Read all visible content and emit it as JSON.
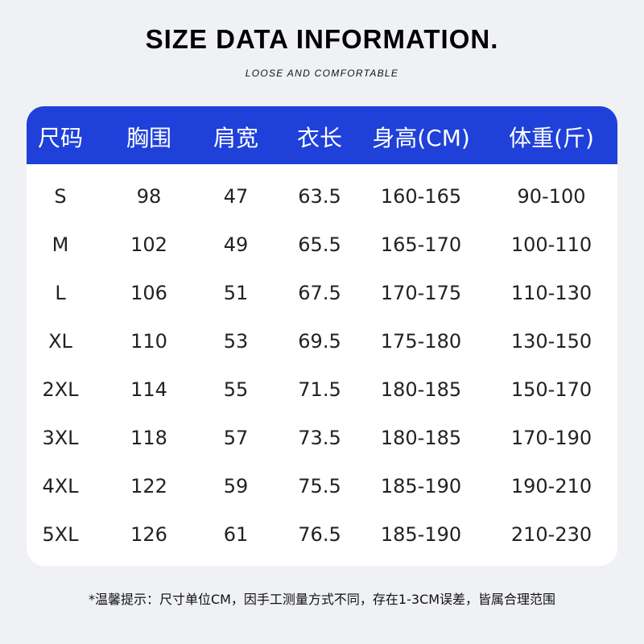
{
  "title": "SIZE DATA INFORMATION.",
  "subtitle": "LOOSE AND COMFORTABLE",
  "colors": {
    "header": "#1f40d9",
    "background": "#f0f1f5"
  },
  "table": {
    "headers": [
      "尺码",
      "胸围",
      "肩宽",
      "衣长",
      "身高(CM)",
      "体重(斤)"
    ],
    "rows": [
      [
        "S",
        "98",
        "47",
        "63.5",
        "160-165",
        "90-100"
      ],
      [
        "M",
        "102",
        "49",
        "65.5",
        "165-170",
        "100-110"
      ],
      [
        "L",
        "106",
        "51",
        "67.5",
        "170-175",
        "110-130"
      ],
      [
        "XL",
        "110",
        "53",
        "69.5",
        "175-180",
        "130-150"
      ],
      [
        "2XL",
        "114",
        "55",
        "71.5",
        "180-185",
        "150-170"
      ],
      [
        "3XL",
        "118",
        "57",
        "73.5",
        "180-185",
        "170-190"
      ],
      [
        "4XL",
        "122",
        "59",
        "75.5",
        "185-190",
        "190-210"
      ],
      [
        "5XL",
        "126",
        "61",
        "76.5",
        "185-190",
        "210-230"
      ]
    ]
  },
  "note": "*温馨提示：尺寸单位CM，因手工测量方式不同，存在1-3CM误差，皆属合理范围"
}
